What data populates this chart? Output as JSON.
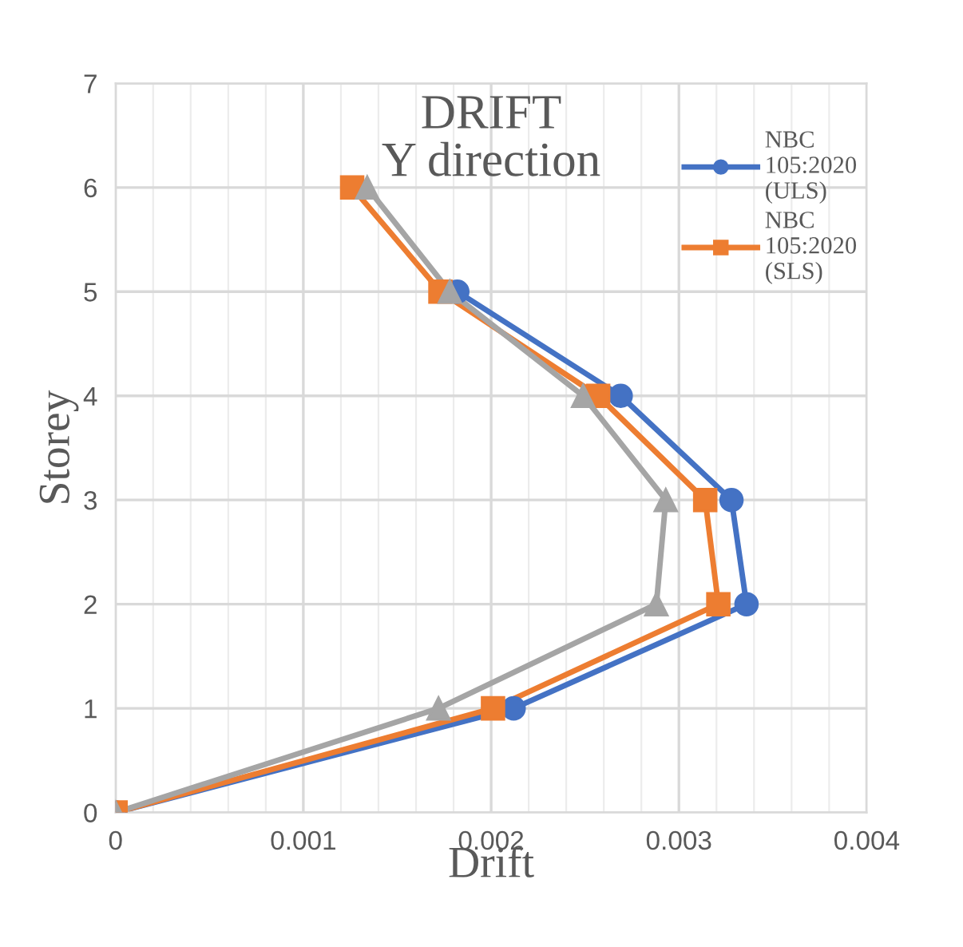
{
  "chart_data": {
    "type": "line",
    "title": "DRIFT\nY direction",
    "xlabel": "Drift",
    "ylabel": "Storey",
    "xlim": [
      0,
      0.004
    ],
    "xticks": [
      {
        "value": 0,
        "label": "0"
      },
      0.001,
      0.002,
      0.003,
      0.004
    ],
    "ylim": [
      0,
      7
    ],
    "yticks": [
      0,
      1,
      2,
      3,
      4,
      5,
      6,
      7
    ],
    "grid": true,
    "legend": "right",
    "series": [
      {
        "name": "NBC\n105:2020\n(ULS)",
        "color": "#4472c4",
        "marker": "circle",
        "x": [
          0,
          0.00212,
          0.00336,
          0.00328,
          0.00269,
          0.00182
        ],
        "values": [
          0,
          1,
          2,
          3,
          4,
          5
        ]
      },
      {
        "name": "NBC\n105:2020\n(SLS)",
        "color": "#ed7d31",
        "marker": "square",
        "x": [
          0,
          0.00201,
          0.00321,
          0.00314,
          0.00257,
          0.00173,
          0.00126
        ],
        "values": [
          0,
          1,
          2,
          3,
          4,
          5,
          6
        ]
      },
      {
        "color": "#a5a5a5",
        "marker": "triangle",
        "x": [
          0,
          0.00172,
          0.00288,
          0.00293,
          0.00249,
          0.00178,
          0.00134
        ],
        "values": [
          0,
          1,
          2,
          3,
          4,
          5,
          6
        ]
      }
    ]
  }
}
